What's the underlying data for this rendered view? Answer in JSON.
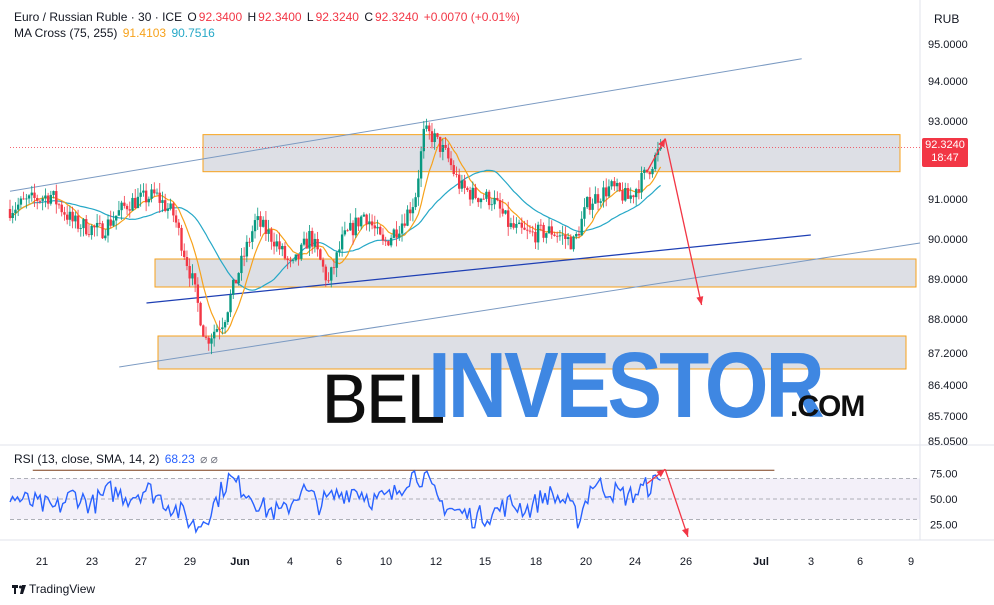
{
  "header": {
    "symbol": "Euro / Russian Ruble · 30 · ICE",
    "o_label": "O",
    "o_value": "92.3400",
    "h_label": "H",
    "h_value": "92.3400",
    "l_label": "L",
    "l_value": "92.3240",
    "c_label": "C",
    "c_value": "92.3240",
    "change": "+0.0070 (+0.01%)",
    "ma_label": "MA Cross (75, 255)",
    "ma_fast_value": "91.4103",
    "ma_slow_value": "90.7516",
    "rsi_label": "RSI (13, close, SMA, 14, 2)",
    "rsi_value": "68.23",
    "rsi_icons": "⌀ ⌀"
  },
  "currency": "RUB",
  "price_badge": {
    "price": "92.3240",
    "countdown": "18:47"
  },
  "watermark": {
    "part1": "BEL",
    "part2": "INVESTOR",
    "part3": ".COM"
  },
  "logo": "TradingView",
  "colors": {
    "up": "#089981",
    "down": "#f23645",
    "ma_fast": "#f7a21b",
    "ma_slow": "#26a8c7",
    "rsi": "#2962ff",
    "zone_fill": "#d1d4dc",
    "zone_border": "#f7a21b",
    "arrow": "#f23645"
  },
  "chart_data": [
    {
      "type": "candlestick",
      "title": "Euro / Russian Ruble · 30 · ICE",
      "y_unit": "RUB",
      "ylim": [
        85.05,
        95.3
      ],
      "y_ticks": [
        "95.0000",
        "94.0000",
        "93.0000",
        "92.0000",
        "91.0000",
        "90.0000",
        "89.0000",
        "88.0000",
        "87.2000",
        "86.4000",
        "85.7000",
        "85.0500"
      ],
      "x_ticks": [
        "21",
        "23",
        "27",
        "29",
        "Jun",
        "4",
        "6",
        "10",
        "12",
        "15",
        "18",
        "20",
        "24",
        "26",
        "Jul",
        "3",
        "6",
        "9"
      ],
      "last_price": 92.324,
      "series_ma": [
        {
          "name": "MA 75",
          "value": 91.4103
        },
        {
          "name": "MA 255",
          "value": 90.7516
        }
      ],
      "zones": [
        {
          "from": 91.7,
          "to": 92.65
        },
        {
          "from": 88.8,
          "to": 89.5
        },
        {
          "from": 86.8,
          "to": 87.6
        }
      ],
      "channel_lines": [
        {
          "from": [
            0,
            91.2
          ],
          "to": [
            0.87,
            94.6
          ]
        },
        {
          "from": [
            0.12,
            86.85
          ],
          "to": [
            1.0,
            89.9
          ]
        },
        {
          "from": [
            0.15,
            88.4
          ],
          "to": [
            0.88,
            90.1
          ]
        }
      ],
      "forecast_arrows": [
        {
          "from": [
            0.7,
            91.7
          ],
          "to": [
            0.72,
            92.55
          ]
        },
        {
          "from": [
            0.72,
            92.55
          ],
          "to": [
            0.76,
            88.35
          ]
        }
      ],
      "anchors": [
        [
          0.0,
          90.75
        ],
        [
          0.02,
          90.95
        ],
        [
          0.045,
          91.1
        ],
        [
          0.07,
          90.4
        ],
        [
          0.1,
          90.2
        ],
        [
          0.13,
          90.9
        ],
        [
          0.16,
          91.1
        ],
        [
          0.18,
          90.6
        ],
        [
          0.2,
          89.0
        ],
        [
          0.215,
          87.5
        ],
        [
          0.235,
          88.0
        ],
        [
          0.25,
          89.1
        ],
        [
          0.27,
          90.45
        ],
        [
          0.29,
          90.0
        ],
        [
          0.31,
          89.25
        ],
        [
          0.33,
          90.1
        ],
        [
          0.35,
          88.9
        ],
        [
          0.365,
          89.95
        ],
        [
          0.39,
          90.65
        ],
        [
          0.41,
          89.85
        ],
        [
          0.43,
          90.4
        ],
        [
          0.445,
          91.0
        ],
        [
          0.455,
          92.7
        ],
        [
          0.465,
          92.6
        ],
        [
          0.48,
          92.1
        ],
        [
          0.495,
          91.3
        ],
        [
          0.51,
          91.1
        ],
        [
          0.53,
          91.0
        ],
        [
          0.55,
          90.3
        ],
        [
          0.57,
          90.1
        ],
        [
          0.595,
          90.2
        ],
        [
          0.62,
          89.9
        ],
        [
          0.635,
          90.9
        ],
        [
          0.66,
          91.3
        ],
        [
          0.68,
          91.0
        ],
        [
          0.7,
          91.7
        ],
        [
          0.715,
          92.3
        ]
      ]
    },
    {
      "type": "line",
      "title": "RSI (13, close, SMA, 14, 2)",
      "ylim": [
        10,
        90
      ],
      "y_ticks": [
        "75.00",
        "50.00",
        "25.00"
      ],
      "bands": [
        30,
        70
      ],
      "last_value": 68.23,
      "overbought_line": 78,
      "forecast_arrows": [
        {
          "from": [
            0.7,
            65
          ],
          "to": [
            0.72,
            79
          ]
        },
        {
          "from": [
            0.72,
            79
          ],
          "to": [
            0.745,
            13
          ]
        }
      ],
      "anchors": [
        [
          0.0,
          52
        ],
        [
          0.03,
          45
        ],
        [
          0.05,
          40
        ],
        [
          0.07,
          55
        ],
        [
          0.09,
          44
        ],
        [
          0.11,
          58
        ],
        [
          0.13,
          52
        ],
        [
          0.15,
          60
        ],
        [
          0.17,
          48
        ],
        [
          0.19,
          35
        ],
        [
          0.205,
          22
        ],
        [
          0.22,
          38
        ],
        [
          0.24,
          70
        ],
        [
          0.26,
          58
        ],
        [
          0.28,
          40
        ],
        [
          0.3,
          36
        ],
        [
          0.32,
          60
        ],
        [
          0.34,
          45
        ],
        [
          0.36,
          54
        ],
        [
          0.38,
          60
        ],
        [
          0.4,
          49
        ],
        [
          0.42,
          52
        ],
        [
          0.44,
          74
        ],
        [
          0.455,
          72
        ],
        [
          0.47,
          48
        ],
        [
          0.49,
          38
        ],
        [
          0.51,
          32
        ],
        [
          0.53,
          36
        ],
        [
          0.55,
          46
        ],
        [
          0.57,
          40
        ],
        [
          0.59,
          55
        ],
        [
          0.61,
          48
        ],
        [
          0.625,
          30
        ],
        [
          0.64,
          66
        ],
        [
          0.66,
          58
        ],
        [
          0.68,
          52
        ],
        [
          0.7,
          62
        ],
        [
          0.715,
          68
        ]
      ]
    }
  ]
}
